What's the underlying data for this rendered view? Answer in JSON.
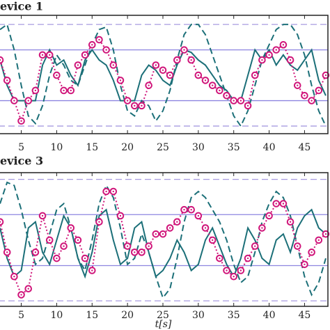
{
  "chart_data": [
    {
      "type": "line",
      "title": "evice 1",
      "x": [
        2,
        3,
        4,
        5,
        6,
        7,
        8,
        9,
        10,
        11,
        12,
        13,
        14,
        15,
        16,
        17,
        18,
        19,
        20,
        21,
        22,
        23,
        24,
        25,
        26,
        27,
        28,
        29,
        30,
        31,
        32,
        33,
        34,
        35,
        36,
        37,
        38,
        39,
        40,
        41,
        42,
        43,
        44,
        45,
        46,
        47,
        48
      ],
      "xlim": [
        1.8,
        48.3
      ],
      "ylim": [
        -1.15,
        1.18
      ],
      "xticks": [
        5,
        10,
        15,
        20,
        25,
        30,
        35,
        40,
        45
      ],
      "hlines": [
        {
          "value": 1,
          "style": "dashed",
          "color": "#a79be0"
        },
        {
          "value": 0.5,
          "style": "solid",
          "color": "#8d85e0"
        },
        {
          "value": -0.5,
          "style": "solid",
          "color": "#8d85e0"
        },
        {
          "value": -1,
          "style": "dashed",
          "color": "#a79be0"
        }
      ],
      "series": [
        {
          "style": "solid",
          "color": "#1b6f78",
          "values": [
            0.3,
            -0.2,
            -0.5,
            -0.5,
            -0.5,
            -0.5,
            0.2,
            0.5,
            0.2,
            0.3,
            0.0,
            -0.2,
            0.3,
            0.5,
            0.3,
            0.2,
            -0.1,
            -0.5,
            -0.5,
            -0.5,
            0.0,
            0.2,
            0.1,
            -0.1,
            -0.2,
            0.2,
            0.5,
            0.45,
            0.3,
            0.2,
            0.0,
            -0.2,
            -0.3,
            -0.5,
            -0.5,
            0.0,
            0.5,
            0.3,
            0.5,
            0.2,
            0.4,
            0.2,
            0.1,
            0.3,
            0.5,
            -0.1,
            -0.4
          ]
        },
        {
          "style": "dashed",
          "color": "#1b6f78",
          "values": [
            0.9,
            1.0,
            0.5,
            -0.2,
            -0.8,
            -0.95,
            -0.6,
            0.0,
            0.4,
            0.2,
            -0.1,
            -0.2,
            0.2,
            0.6,
            0.9,
            0.95,
            0.5,
            -0.2,
            -0.7,
            -0.8,
            -0.5,
            -0.6,
            -0.9,
            -0.7,
            -0.3,
            0.3,
            0.8,
            1.0,
            1.0,
            0.8,
            0.4,
            0.0,
            -0.4,
            -0.8,
            -1.0,
            -0.7,
            -0.2,
            0.3,
            0.6,
            0.9,
            1.0,
            1.0,
            0.8,
            0.4,
            -0.2,
            -0.7,
            -1.0
          ]
        },
        {
          "style": "dotted",
          "marker": "circle",
          "color": "#d0157a",
          "values": [
            0.3,
            -0.1,
            -0.5,
            -0.9,
            -0.5,
            -0.3,
            0.4,
            0.4,
            0.0,
            -0.3,
            -0.3,
            0.2,
            0.4,
            0.6,
            0.7,
            0.5,
            0.2,
            -0.1,
            -0.5,
            -0.6,
            -0.6,
            -0.2,
            0.2,
            0.1,
            0.0,
            0.3,
            0.5,
            0.3,
            0.0,
            -0.1,
            -0.2,
            -0.3,
            -0.4,
            -0.5,
            -0.5,
            -0.6,
            0.0,
            0.3,
            0.4,
            0.5,
            0.6,
            0.3,
            -0.2,
            -0.4,
            -0.5,
            -0.3,
            0.0
          ]
        }
      ]
    },
    {
      "type": "line",
      "title": "evice 3",
      "xlabel": "t[s]",
      "x": [
        2,
        3,
        4,
        5,
        6,
        7,
        8,
        9,
        10,
        11,
        12,
        13,
        14,
        15,
        16,
        17,
        18,
        19,
        20,
        21,
        22,
        23,
        24,
        25,
        26,
        27,
        28,
        29,
        30,
        31,
        32,
        33,
        34,
        35,
        36,
        37,
        38,
        39,
        40,
        41,
        42,
        43,
        44,
        45,
        46,
        47,
        48
      ],
      "xlim": [
        1.8,
        48.3
      ],
      "ylim": [
        -1.09,
        1.11
      ],
      "xticks": [
        5,
        10,
        15,
        20,
        25,
        30,
        35,
        40,
        45
      ],
      "hlines": [
        {
          "value": 1,
          "style": "dashed",
          "color": "#a79be0"
        },
        {
          "value": 0.42,
          "style": "solid",
          "color": "#8d85e0"
        },
        {
          "value": -0.42,
          "style": "solid",
          "color": "#8d85e0"
        },
        {
          "value": -1,
          "style": "dashed",
          "color": "#a79be0"
        }
      ],
      "series": [
        {
          "style": "solid",
          "color": "#1b6f78",
          "values": [
            0.2,
            -0.3,
            -0.6,
            -0.5,
            0.2,
            0.3,
            -0.2,
            -0.4,
            0.0,
            0.4,
            0.2,
            -0.3,
            -0.6,
            -0.2,
            0.4,
            0.5,
            0.0,
            -0.4,
            -0.3,
            0.2,
            0.3,
            -0.2,
            -0.6,
            -0.5,
            -0.3,
            0.0,
            -0.2,
            -0.5,
            -0.4,
            0.0,
            0.2,
            -0.1,
            -0.4,
            -0.6,
            -0.3,
            0.2,
            0.0,
            -0.3,
            -0.4,
            0.0,
            0.1,
            -0.2,
            0.2,
            0.4,
            0.5,
            0.2,
            0.1
          ]
        },
        {
          "style": "dashed",
          "color": "#1b6f78",
          "values": [
            0.6,
            0.95,
            0.9,
            0.5,
            0.0,
            -0.4,
            -0.3,
            0.1,
            0.5,
            0.6,
            0.2,
            -0.3,
            -0.5,
            0.0,
            0.6,
            0.9,
            0.7,
            0.2,
            -0.4,
            -0.3,
            0.1,
            -0.2,
            -0.6,
            -0.95,
            -0.8,
            -0.3,
            0.3,
            0.7,
            0.8,
            0.7,
            0.5,
            0.3,
            0.0,
            -0.4,
            -0.7,
            -0.6,
            -0.2,
            0.3,
            0.6,
            0.8,
            0.7,
            0.4,
            -0.1,
            -0.6,
            -0.9,
            -0.7,
            -0.3
          ]
        },
        {
          "style": "dotted",
          "marker": "circle",
          "color": "#d0157a",
          "values": [
            0.3,
            -0.2,
            -0.6,
            -0.9,
            -0.8,
            -0.2,
            0.4,
            0.0,
            -0.3,
            -0.1,
            0.2,
            0.0,
            -0.3,
            -0.5,
            0.3,
            0.8,
            0.8,
            0.4,
            -0.1,
            -0.2,
            -0.2,
            -0.1,
            0.1,
            0.1,
            0.2,
            0.3,
            0.5,
            0.5,
            0.4,
            0.2,
            0.0,
            -0.3,
            -0.5,
            -0.6,
            -0.5,
            -0.3,
            -0.1,
            0.2,
            0.4,
            0.6,
            0.6,
            0.3,
            -0.1,
            -0.4,
            -0.2,
            0.0,
            0.1
          ]
        }
      ]
    }
  ]
}
